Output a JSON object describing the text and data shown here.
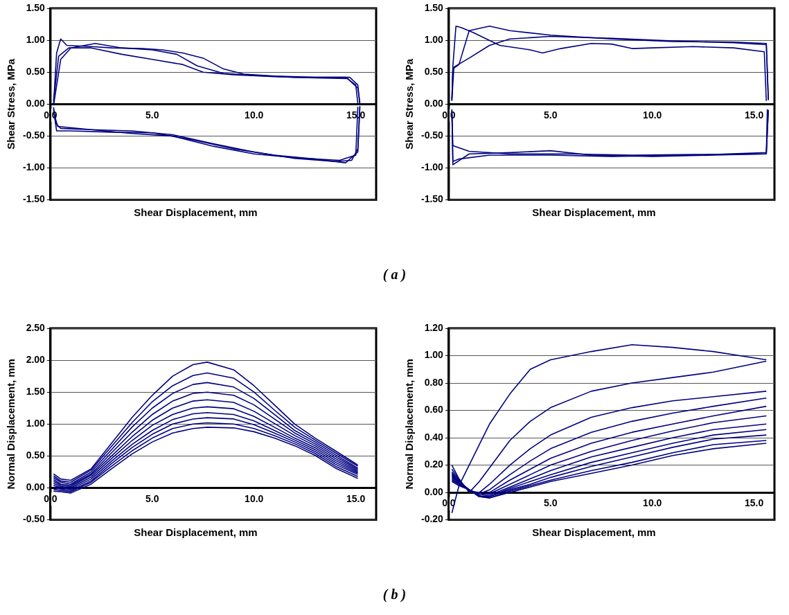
{
  "chart_data": [
    {
      "type": "line",
      "xlabel": "Shear Displacement, mm",
      "ylabel": "Shear Stress, MPa",
      "annotations": [
        "( a )"
      ],
      "grid": "y",
      "legend": false,
      "marker": "none",
      "line_style": "solid",
      "xlim": [
        0,
        16
      ],
      "xticks": [
        {
          "value": 0,
          "label": "0.0"
        },
        {
          "value": 5,
          "label": "5.0"
        },
        {
          "value": 10,
          "label": "10.0"
        },
        {
          "value": 15,
          "label": "15.0"
        }
      ],
      "ylim": [
        -1.5,
        1.5
      ],
      "yticks": [
        {
          "value": -1.5,
          "label": "-1.50"
        },
        {
          "value": -1,
          "label": "-1.00"
        },
        {
          "value": -0.5,
          "label": "-0.50"
        },
        {
          "value": 0,
          "label": "0.00"
        },
        {
          "value": 0.5,
          "label": "0.50"
        },
        {
          "value": 1,
          "label": "1.00"
        },
        {
          "value": 1.5,
          "label": "1.50"
        }
      ],
      "series": [
        {
          "color": "#000080",
          "x": [
            0.15,
            0.3,
            0.5,
            0.8,
            2,
            3,
            4.5,
            5.5,
            6.5,
            7.5,
            8.5,
            9.5,
            11,
            13,
            14.7,
            15.1,
            15.2
          ],
          "values": [
            0,
            0.8,
            1.02,
            0.92,
            0.9,
            0.88,
            0.87,
            0.85,
            0.8,
            0.72,
            0.55,
            0.47,
            0.44,
            0.42,
            0.42,
            0.3,
            0
          ]
        },
        {
          "color": "#000080",
          "x": [
            0.15,
            0.25,
            0.5,
            2,
            4,
            6,
            8,
            10,
            12,
            14,
            14.8,
            15.1,
            15.2
          ],
          "values": [
            -0.05,
            -0.3,
            -0.38,
            -0.4,
            -0.42,
            -0.48,
            -0.62,
            -0.75,
            -0.85,
            -0.9,
            -0.88,
            -0.7,
            -0.05
          ]
        },
        {
          "color": "#000080",
          "x": [
            0.15,
            0.4,
            0.9,
            2,
            3.5,
            5,
            6.5,
            7.5,
            9,
            11,
            13,
            14.6,
            15.1,
            15.2
          ],
          "values": [
            0.05,
            0.75,
            0.88,
            0.88,
            0.78,
            0.7,
            0.62,
            0.5,
            0.46,
            0.43,
            0.41,
            0.4,
            0.25,
            0.02
          ]
        },
        {
          "color": "#000080",
          "x": [
            0.15,
            0.3,
            1,
            3,
            5,
            7,
            9,
            11,
            13,
            14.5,
            15.1,
            15.2
          ],
          "values": [
            -0.08,
            -0.42,
            -0.42,
            -0.44,
            -0.45,
            -0.56,
            -0.7,
            -0.8,
            -0.86,
            -0.92,
            -0.75,
            -0.03
          ]
        },
        {
          "color": "#000080",
          "x": [
            0.15,
            0.5,
            1,
            2.2,
            3.5,
            5,
            6.2,
            7.2,
            8.5,
            10,
            12,
            14.5,
            15,
            15.1
          ],
          "values": [
            -0.02,
            0.7,
            0.88,
            0.95,
            0.88,
            0.85,
            0.78,
            0.6,
            0.48,
            0.45,
            0.42,
            0.42,
            0.3,
            0.01
          ]
        },
        {
          "color": "#000080",
          "x": [
            0.15,
            0.35,
            2,
            4,
            6,
            8,
            10,
            12,
            14.2,
            15,
            15.1
          ],
          "values": [
            -0.12,
            -0.35,
            -0.4,
            -0.46,
            -0.5,
            -0.66,
            -0.78,
            -0.84,
            -0.88,
            -0.8,
            -0.04
          ]
        }
      ]
    },
    {
      "type": "line",
      "xlabel": "Shear Displacement, mm",
      "ylabel": "Shear Stress, MPa",
      "grid": "y",
      "legend": false,
      "marker": "none",
      "line_style": "solid",
      "xlim": [
        0,
        16
      ],
      "xticks": [
        {
          "value": 0,
          "label": "0.0"
        },
        {
          "value": 5,
          "label": "5.0"
        },
        {
          "value": 10,
          "label": "10.0"
        },
        {
          "value": 15,
          "label": "15.0"
        }
      ],
      "ylim": [
        -1.5,
        1.5
      ],
      "yticks": [
        {
          "value": -1.5,
          "label": "-1.50"
        },
        {
          "value": -1,
          "label": "-1.00"
        },
        {
          "value": -0.5,
          "label": "-0.50"
        },
        {
          "value": 0,
          "label": "0.00"
        },
        {
          "value": 0.5,
          "label": "0.50"
        },
        {
          "value": 1,
          "label": "1.00"
        },
        {
          "value": 1.5,
          "label": "1.50"
        }
      ],
      "series": [
        {
          "color": "#000080",
          "x": [
            0.15,
            0.2,
            0.35,
            0.6,
            1.2,
            2.5,
            4,
            4.6,
            5.5,
            7,
            8,
            9,
            10,
            12,
            14,
            15.5,
            15.6
          ],
          "values": [
            0.05,
            0.6,
            1.22,
            1.2,
            1.12,
            0.92,
            0.85,
            0.8,
            0.87,
            0.95,
            0.94,
            0.87,
            0.88,
            0.9,
            0.88,
            0.82,
            0.05
          ]
        },
        {
          "color": "#000080",
          "x": [
            0.15,
            0.2,
            1,
            3,
            5,
            7,
            10,
            13,
            15.6,
            15.65
          ],
          "values": [
            -0.08,
            -0.95,
            -0.78,
            -0.76,
            -0.73,
            -0.8,
            -0.82,
            -0.8,
            -0.78,
            -0.08
          ]
        },
        {
          "color": "#000080",
          "x": [
            0.15,
            0.2,
            0.5,
            1,
            2,
            3,
            5,
            8,
            11,
            14,
            15.6,
            15.7
          ],
          "values": [
            0.08,
            0.55,
            0.62,
            1.15,
            1.22,
            1.15,
            1.08,
            1.02,
            0.98,
            0.97,
            0.95,
            0.06
          ]
        },
        {
          "color": "#000080",
          "x": [
            0.15,
            0.2,
            1,
            3,
            6,
            9,
            12,
            15.6,
            15.7
          ],
          "values": [
            -0.1,
            -0.65,
            -0.74,
            -0.78,
            -0.78,
            -0.8,
            -0.79,
            -0.78,
            -0.09
          ]
        },
        {
          "color": "#000080",
          "x": [
            0.15,
            0.25,
            1,
            2,
            3,
            5,
            8,
            11,
            14,
            15.6,
            15.7
          ],
          "values": [
            0.06,
            0.58,
            0.72,
            0.92,
            1.02,
            1.06,
            1.03,
            0.99,
            0.96,
            0.93,
            0.07
          ]
        },
        {
          "color": "#000080",
          "x": [
            0.15,
            0.2,
            0.5,
            2,
            5,
            8,
            12,
            15.6,
            15.7
          ],
          "values": [
            -0.12,
            -0.9,
            -0.86,
            -0.8,
            -0.8,
            -0.82,
            -0.8,
            -0.76,
            -0.1
          ]
        }
      ]
    },
    {
      "type": "line",
      "xlabel": "Shear Displacement, mm",
      "ylabel": "Normal Displacement, mm",
      "annotations": [
        "( b )"
      ],
      "grid": "y",
      "legend": false,
      "marker": "none",
      "line_style": "solid",
      "xlim": [
        0,
        16
      ],
      "xticks": [
        {
          "value": 0,
          "label": "0.0"
        },
        {
          "value": 5,
          "label": "5.0"
        },
        {
          "value": 10,
          "label": "10.0"
        },
        {
          "value": 15,
          "label": "15.0"
        }
      ],
      "ylim": [
        -0.5,
        2.5
      ],
      "yticks": [
        {
          "value": -0.5,
          "label": "-0.50"
        },
        {
          "value": 0,
          "label": "0.00"
        },
        {
          "value": 0.5,
          "label": "0.50"
        },
        {
          "value": 1,
          "label": "1.00"
        },
        {
          "value": 1.5,
          "label": "1.50"
        },
        {
          "value": 2,
          "label": "2.00"
        },
        {
          "value": 2.5,
          "label": "2.50"
        }
      ],
      "x": [
        0.15,
        0.5,
        1,
        2,
        3,
        4,
        5,
        6,
        7,
        7.7,
        9,
        10,
        11,
        12,
        13,
        14,
        15.1
      ],
      "series": [
        {
          "color": "#000080",
          "values": [
            0.22,
            0.14,
            0.12,
            0.3,
            0.7,
            1.1,
            1.45,
            1.75,
            1.93,
            1.97,
            1.85,
            1.6,
            1.3,
            1.0,
            0.78,
            0.58,
            0.36
          ]
        },
        {
          "color": "#000080",
          "values": [
            0.19,
            0.11,
            0.09,
            0.28,
            0.65,
            1.02,
            1.35,
            1.6,
            1.76,
            1.8,
            1.72,
            1.5,
            1.22,
            0.95,
            0.75,
            0.55,
            0.34
          ]
        },
        {
          "color": "#000080",
          "values": [
            0.16,
            0.09,
            0.06,
            0.25,
            0.6,
            0.95,
            1.25,
            1.48,
            1.62,
            1.65,
            1.58,
            1.4,
            1.15,
            0.9,
            0.72,
            0.52,
            0.31
          ]
        },
        {
          "color": "#000080",
          "values": [
            0.13,
            0.06,
            0.04,
            0.22,
            0.55,
            0.87,
            1.15,
            1.36,
            1.48,
            1.5,
            1.45,
            1.3,
            1.08,
            0.86,
            0.69,
            0.49,
            0.29
          ]
        },
        {
          "color": "#000080",
          "values": [
            0.1,
            0.04,
            0.02,
            0.2,
            0.5,
            0.8,
            1.06,
            1.25,
            1.36,
            1.38,
            1.34,
            1.2,
            1.01,
            0.82,
            0.66,
            0.46,
            0.27
          ]
        },
        {
          "color": "#000080",
          "values": [
            0.07,
            0.02,
            0,
            0.17,
            0.46,
            0.74,
            0.98,
            1.15,
            1.25,
            1.27,
            1.24,
            1.12,
            0.95,
            0.78,
            0.63,
            0.43,
            0.25
          ]
        },
        {
          "color": "#000080",
          "values": [
            0.04,
            0,
            -0.02,
            0.14,
            0.42,
            0.68,
            0.9,
            1.07,
            1.16,
            1.18,
            1.15,
            1.05,
            0.9,
            0.75,
            0.6,
            0.4,
            0.23
          ]
        },
        {
          "color": "#000080",
          "values": [
            0.01,
            -0.02,
            -0.04,
            0.11,
            0.38,
            0.63,
            0.84,
            1.0,
            1.08,
            1.1,
            1.08,
            0.99,
            0.86,
            0.72,
            0.57,
            0.37,
            0.21
          ]
        },
        {
          "color": "#000080",
          "values": [
            -0.02,
            -0.04,
            -0.06,
            0.09,
            0.34,
            0.58,
            0.78,
            0.93,
            1.0,
            1.02,
            1.0,
            0.93,
            0.82,
            0.69,
            0.54,
            0.34,
            0.18
          ]
        },
        {
          "color": "#000080",
          "values": [
            -0.05,
            -0.06,
            -0.08,
            0.06,
            0.3,
            0.53,
            0.72,
            0.86,
            0.93,
            0.95,
            0.94,
            0.88,
            0.78,
            0.66,
            0.51,
            0.31,
            0.15
          ]
        }
      ]
    },
    {
      "type": "line",
      "xlabel": "Shear Displacement, mm",
      "ylabel": "Normal Displacement, mm",
      "grid": "y",
      "legend": false,
      "marker": "none",
      "line_style": "solid",
      "xlim": [
        0,
        16
      ],
      "xticks": [
        {
          "value": 0,
          "label": "0.0"
        },
        {
          "value": 5,
          "label": "5.0"
        },
        {
          "value": 10,
          "label": "10.0"
        },
        {
          "value": 15,
          "label": "15.0"
        }
      ],
      "ylim": [
        -0.2,
        1.2
      ],
      "yticks": [
        {
          "value": -0.2,
          "label": "-0.20"
        },
        {
          "value": 0,
          "label": "0.00"
        },
        {
          "value": 0.2,
          "label": "0.20"
        },
        {
          "value": 0.4,
          "label": "0.40"
        },
        {
          "value": 0.6,
          "label": "0.60"
        },
        {
          "value": 0.8,
          "label": "0.80"
        },
        {
          "value": 1,
          "label": "1.00"
        },
        {
          "value": 1.2,
          "label": "1.20"
        }
      ],
      "x": [
        0.15,
        0.5,
        1,
        1.5,
        2,
        3,
        4,
        5,
        7,
        9,
        11,
        13,
        15.6
      ],
      "series": [
        {
          "color": "#000080",
          "values": [
            -0.15,
            0.05,
            0.2,
            0.35,
            0.5,
            0.72,
            0.9,
            0.97,
            1.03,
            1.08,
            1.06,
            1.03,
            0.97
          ]
        },
        {
          "color": "#000080",
          "values": [
            0.2,
            0.1,
            0.0,
            0.08,
            0.18,
            0.38,
            0.52,
            0.62,
            0.74,
            0.8,
            0.84,
            0.88,
            0.96
          ]
        },
        {
          "color": "#000080",
          "values": [
            0.17,
            0.09,
            0.01,
            0.0,
            0.06,
            0.2,
            0.32,
            0.42,
            0.55,
            0.62,
            0.67,
            0.7,
            0.74
          ]
        },
        {
          "color": "#000080",
          "values": [
            0.15,
            0.08,
            0.02,
            -0.01,
            0.02,
            0.13,
            0.23,
            0.32,
            0.44,
            0.52,
            0.58,
            0.63,
            0.69
          ]
        },
        {
          "color": "#000080",
          "values": [
            0.14,
            0.08,
            0.02,
            -0.02,
            0.0,
            0.09,
            0.17,
            0.25,
            0.36,
            0.44,
            0.5,
            0.56,
            0.63
          ]
        },
        {
          "color": "#000080",
          "values": [
            0.13,
            0.07,
            0.02,
            -0.02,
            -0.01,
            0.06,
            0.13,
            0.2,
            0.3,
            0.38,
            0.45,
            0.51,
            0.56
          ]
        },
        {
          "color": "#000080",
          "values": [
            0.12,
            0.07,
            0.02,
            -0.03,
            -0.02,
            0.04,
            0.1,
            0.16,
            0.26,
            0.33,
            0.4,
            0.46,
            0.5
          ]
        },
        {
          "color": "#000080",
          "values": [
            0.11,
            0.07,
            0.02,
            -0.03,
            -0.03,
            0.03,
            0.08,
            0.13,
            0.22,
            0.29,
            0.36,
            0.42,
            0.46
          ]
        },
        {
          "color": "#000080",
          "values": [
            0.1,
            0.06,
            0.02,
            -0.03,
            -0.03,
            0.02,
            0.06,
            0.11,
            0.19,
            0.26,
            0.33,
            0.39,
            0.42
          ]
        },
        {
          "color": "#000080",
          "values": [
            0.09,
            0.06,
            0.02,
            -0.03,
            -0.04,
            0.01,
            0.05,
            0.09,
            0.16,
            0.22,
            0.29,
            0.35,
            0.38
          ]
        },
        {
          "color": "#000080",
          "values": [
            0.08,
            0.05,
            0.02,
            -0.03,
            -0.04,
            0.0,
            0.04,
            0.08,
            0.14,
            0.2,
            0.27,
            0.32,
            0.36
          ]
        }
      ]
    }
  ]
}
